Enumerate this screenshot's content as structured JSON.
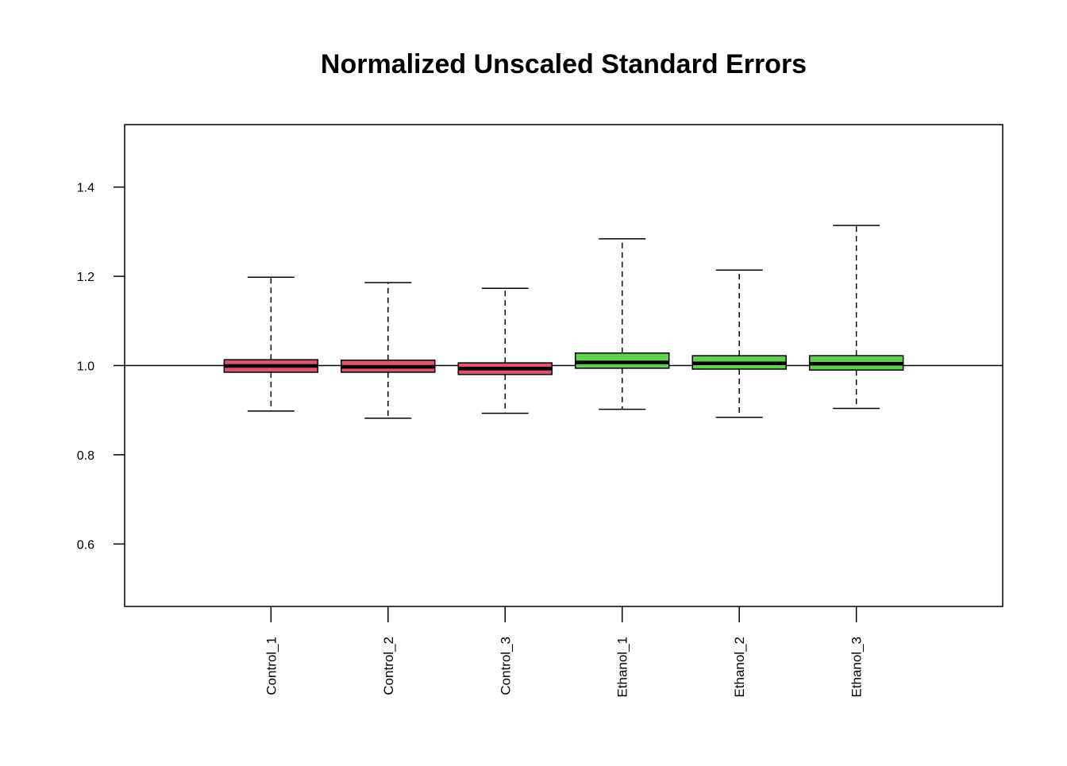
{
  "chart_data": {
    "type": "boxplot",
    "title": "Normalized Unscaled Standard Errors",
    "xlabel": "",
    "ylabel": "",
    "ylim": [
      0.46,
      1.54
    ],
    "yticks": [
      0.6,
      0.8,
      1.0,
      1.2,
      1.4
    ],
    "ytick_labels": [
      "0.6",
      "0.8",
      "1.0",
      "1.2",
      "1.4"
    ],
    "reference_line": 1.0,
    "grid": false,
    "legend": "none",
    "categories": [
      "Control_1",
      "Control_2",
      "Control_3",
      "Ethanol_1",
      "Ethanol_2",
      "Ethanol_3"
    ],
    "boxes": [
      {
        "name": "Control_1",
        "min": 0.898,
        "q1": 0.985,
        "median": 0.999,
        "q3": 1.013,
        "max": 1.198,
        "color": "#df536b"
      },
      {
        "name": "Control_2",
        "min": 0.882,
        "q1": 0.985,
        "median": 0.997,
        "q3": 1.012,
        "max": 1.186,
        "color": "#df536b"
      },
      {
        "name": "Control_3",
        "min": 0.893,
        "q1": 0.98,
        "median": 0.993,
        "q3": 1.006,
        "max": 1.173,
        "color": "#df536b"
      },
      {
        "name": "Ethanol_1",
        "min": 0.902,
        "q1": 0.994,
        "median": 1.007,
        "q3": 1.028,
        "max": 1.284,
        "color": "#61d04f"
      },
      {
        "name": "Ethanol_2",
        "min": 0.884,
        "q1": 0.992,
        "median": 1.005,
        "q3": 1.022,
        "max": 1.214,
        "color": "#61d04f"
      },
      {
        "name": "Ethanol_3",
        "min": 0.904,
        "q1": 0.99,
        "median": 1.004,
        "q3": 1.022,
        "max": 1.314,
        "color": "#61d04f"
      }
    ]
  }
}
